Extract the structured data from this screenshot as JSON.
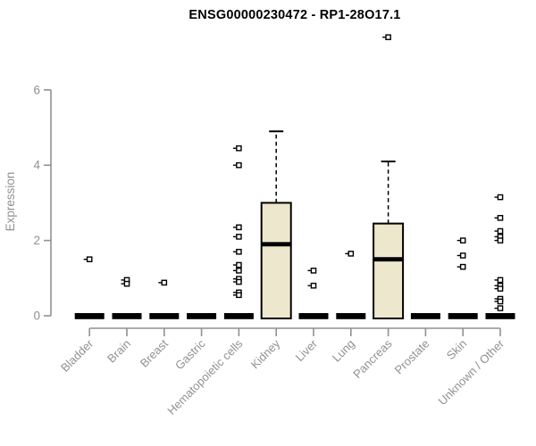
{
  "colors": {
    "background": "#ffffff",
    "title": "#000000",
    "axis": "#919191",
    "tick_label": "#919191",
    "box_fill": "#ede8cd",
    "box_border": "#000000",
    "median": "#000000",
    "whisker": "#000000",
    "outlier_stroke": "#000000",
    "outlier_fill": "#ffffff"
  },
  "chart_data": {
    "type": "boxplot",
    "title": "ENSG00000230472 - RP1-28O17.1",
    "ylabel": "Expression",
    "xlabel": "",
    "ylim": [
      0,
      6
    ],
    "yticks": [
      0,
      2,
      4,
      6
    ],
    "grid": false,
    "legend": "none",
    "marker": "open-square",
    "categories": [
      "Bladder",
      "Brain",
      "Breast",
      "Gastric",
      "Hematopoietic cells",
      "Kidney",
      "Liver",
      "Lung",
      "Pancreas",
      "Prostate",
      "Skin",
      "Unknown / Other"
    ],
    "series": [
      {
        "name": "Bladder",
        "whisker_low": 0,
        "q1": 0,
        "median": 0,
        "q3": 0,
        "whisker_high": 0,
        "outliers": [
          1.5
        ]
      },
      {
        "name": "Brain",
        "whisker_low": 0,
        "q1": 0,
        "median": 0,
        "q3": 0,
        "whisker_high": 0,
        "outliers": [
          0.95,
          0.85
        ]
      },
      {
        "name": "Breast",
        "whisker_low": 0,
        "q1": 0,
        "median": 0,
        "q3": 0,
        "whisker_high": 0,
        "outliers": [
          0.88
        ]
      },
      {
        "name": "Gastric",
        "whisker_low": 0,
        "q1": 0,
        "median": 0,
        "q3": 0,
        "whisker_high": 0,
        "outliers": []
      },
      {
        "name": "Hematopoietic cells",
        "whisker_low": 0,
        "q1": 0,
        "median": 0,
        "q3": 0,
        "whisker_high": 0,
        "outliers": [
          4.45,
          4.0,
          2.35,
          2.1,
          1.7,
          1.35,
          1.2,
          0.98,
          0.9,
          0.62,
          0.55
        ]
      },
      {
        "name": "Kidney",
        "whisker_low": 0,
        "q1": 0,
        "median": 1.9,
        "q3": 3.0,
        "whisker_high": 4.9,
        "outliers": []
      },
      {
        "name": "Liver",
        "whisker_low": 0,
        "q1": 0,
        "median": 0,
        "q3": 0,
        "whisker_high": 0,
        "outliers": [
          1.2,
          0.8
        ]
      },
      {
        "name": "Lung",
        "whisker_low": 0,
        "q1": 0,
        "median": 0,
        "q3": 0,
        "whisker_high": 0,
        "outliers": [
          1.65
        ]
      },
      {
        "name": "Pancreas",
        "whisker_low": 0,
        "q1": 0,
        "median": 1.5,
        "q3": 2.45,
        "whisker_high": 4.1,
        "outliers": [
          7.4
        ]
      },
      {
        "name": "Prostate",
        "whisker_low": 0,
        "q1": 0,
        "median": 0,
        "q3": 0,
        "whisker_high": 0,
        "outliers": []
      },
      {
        "name": "Skin",
        "whisker_low": 0,
        "q1": 0,
        "median": 0,
        "q3": 0,
        "whisker_high": 0,
        "outliers": [
          2.0,
          1.6,
          1.3
        ]
      },
      {
        "name": "Unknown / Other",
        "whisker_low": 0,
        "q1": 0,
        "median": 0,
        "q3": 0,
        "whisker_high": 0,
        "outliers": [
          3.15,
          2.6,
          2.25,
          2.1,
          2.0,
          0.95,
          0.8,
          0.72,
          0.45,
          0.38,
          0.2
        ]
      }
    ]
  }
}
